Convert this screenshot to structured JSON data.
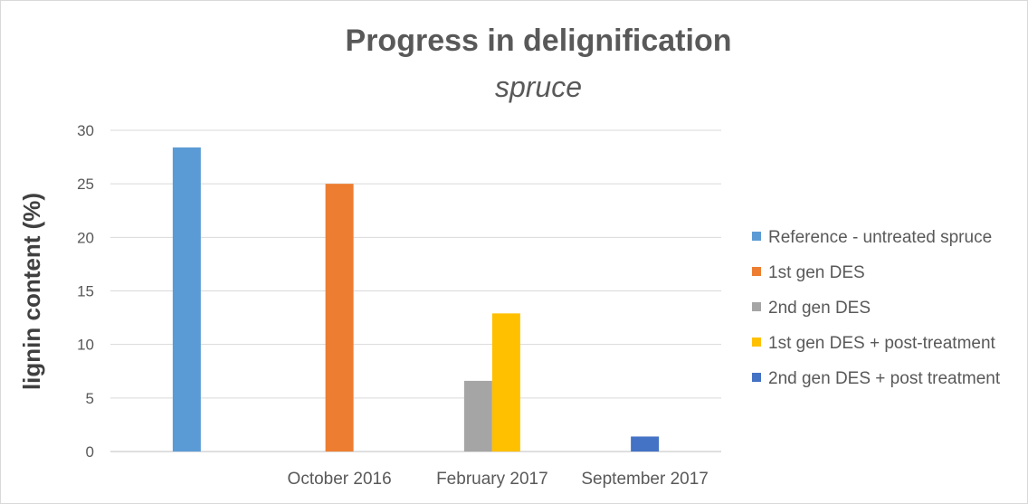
{
  "chart_data": {
    "type": "bar",
    "title": "Progress in delignification",
    "subtitle": "spruce",
    "ylabel": "lignin content (%)",
    "ylim": [
      0,
      30
    ],
    "yticks": [
      0,
      5,
      10,
      15,
      20,
      25,
      30
    ],
    "grid": true,
    "legend_placement": "right",
    "categories": [
      "",
      "October 2016",
      "February 2017",
      "September 2017"
    ],
    "series": [
      {
        "name": "Reference - untreated spruce",
        "color": "#5B9BD5",
        "values": [
          28.4,
          null,
          null,
          null
        ]
      },
      {
        "name": "1st gen DES",
        "color": "#ED7D31",
        "values": [
          null,
          25.0,
          null,
          null
        ]
      },
      {
        "name": "2nd gen DES",
        "color": "#A5A5A5",
        "values": [
          null,
          null,
          6.6,
          null
        ]
      },
      {
        "name": "1st gen DES + post-treatment",
        "color": "#FFC000",
        "values": [
          null,
          null,
          12.9,
          null
        ]
      },
      {
        "name": "2nd gen DES + post treatment",
        "color": "#4472C4",
        "values": [
          null,
          null,
          null,
          1.4
        ]
      }
    ]
  }
}
